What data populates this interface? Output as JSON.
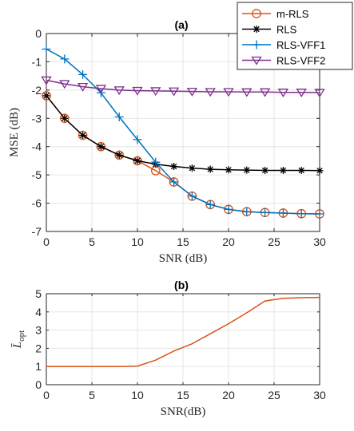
{
  "colors": {
    "m_rls": "#D95319",
    "rls": "#000000",
    "vff1": "#0072BD",
    "vff2": "#7E2F8E",
    "lopt": "#D95319",
    "grid": "#e6e6e6",
    "axis": "#262626"
  },
  "chart_data": [
    {
      "type": "line",
      "title": "(a)",
      "xlabel": "SNR (dB)",
      "ylabel": "MSE (dB)",
      "xlim": [
        0,
        30
      ],
      "ylim": [
        -7,
        0
      ],
      "xticks": [
        0,
        5,
        10,
        15,
        20,
        25,
        30
      ],
      "yticks": [
        -7,
        -6,
        -5,
        -4,
        -3,
        -2,
        -1,
        0
      ],
      "grid": true,
      "legend": "top-right",
      "x": [
        0,
        2,
        4,
        6,
        8,
        10,
        12,
        14,
        16,
        18,
        20,
        22,
        24,
        26,
        28,
        30
      ],
      "series": [
        {
          "name": "m-RLS",
          "marker": "circle",
          "color": "#D95319",
          "values": [
            -2.2,
            -3.0,
            -3.6,
            -4.0,
            -4.3,
            -4.5,
            -4.85,
            -5.25,
            -5.75,
            -6.05,
            -6.22,
            -6.3,
            -6.33,
            -6.35,
            -6.37,
            -6.38
          ]
        },
        {
          "name": "RLS",
          "marker": "asterisk",
          "color": "#000000",
          "values": [
            -2.2,
            -3.0,
            -3.6,
            -4.0,
            -4.3,
            -4.5,
            -4.62,
            -4.7,
            -4.76,
            -4.8,
            -4.82,
            -4.83,
            -4.84,
            -4.84,
            -4.84,
            -4.85
          ]
        },
        {
          "name": "RLS-VFF1",
          "marker": "plus",
          "color": "#0072BD",
          "values": [
            -0.55,
            -0.9,
            -1.45,
            -2.1,
            -2.95,
            -3.75,
            -4.55,
            -5.25,
            -5.75,
            -6.05,
            -6.22,
            -6.3,
            -6.33,
            -6.35,
            -6.37,
            -6.38
          ]
        },
        {
          "name": "RLS-VFF2",
          "marker": "triangle-down",
          "color": "#7E2F8E",
          "values": [
            -1.65,
            -1.78,
            -1.88,
            -1.95,
            -2.0,
            -2.02,
            -2.03,
            -2.04,
            -2.05,
            -2.06,
            -2.06,
            -2.07,
            -2.07,
            -2.08,
            -2.08,
            -2.09
          ]
        }
      ]
    },
    {
      "type": "line",
      "title": "(b)",
      "xlabel": "SNR(dB)",
      "ylabel": "L̄opt",
      "xlim": [
        0,
        30
      ],
      "ylim": [
        0,
        5
      ],
      "xticks": [
        0,
        5,
        10,
        15,
        20,
        25,
        30
      ],
      "yticks": [
        0,
        1,
        2,
        3,
        4,
        5
      ],
      "grid": true,
      "x": [
        0,
        2,
        4,
        6,
        8,
        10,
        12,
        14,
        16,
        18,
        20,
        22,
        24,
        26,
        28,
        30
      ],
      "series": [
        {
          "name": "",
          "color": "#D95319",
          "values": [
            1.0,
            1.0,
            1.0,
            1.0,
            1.0,
            1.02,
            1.35,
            1.85,
            2.25,
            2.8,
            3.35,
            3.95,
            4.6,
            4.75,
            4.78,
            4.8
          ]
        }
      ]
    }
  ]
}
